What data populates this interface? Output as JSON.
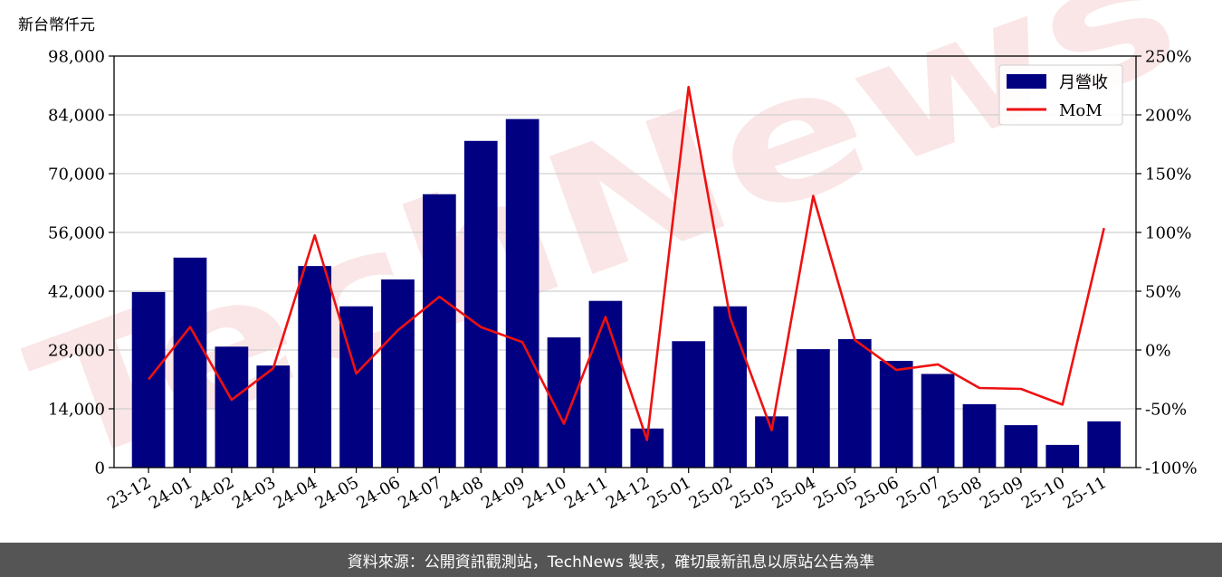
{
  "chart_data": {
    "type": "bar+line",
    "unit_label": "新台幣仟元",
    "categories": [
      "23-12",
      "24-01",
      "24-02",
      "24-03",
      "24-04",
      "24-05",
      "24-06",
      "24-07",
      "24-08",
      "24-09",
      "24-10",
      "24-11",
      "24-12",
      "25-01",
      "25-02",
      "25-03",
      "25-04",
      "25-05",
      "25-06",
      "25-07",
      "25-08",
      "25-09",
      "25-10",
      "25-11"
    ],
    "series": [
      {
        "name": "月營收",
        "axis": "left",
        "kind": "bar",
        "color": "#000080",
        "values": [
          41800,
          50000,
          28800,
          24300,
          48000,
          38400,
          44800,
          65100,
          77800,
          83000,
          31000,
          39700,
          9300,
          30100,
          38400,
          12200,
          28200,
          30600,
          25400,
          22300,
          15100,
          10100,
          5400,
          11000
        ]
      },
      {
        "name": "MoM",
        "axis": "right",
        "kind": "line",
        "color": "#ee1111",
        "values": [
          -25,
          19.6,
          -42.4,
          -15.6,
          97.5,
          -20,
          16.7,
          45.3,
          19.5,
          6.7,
          -62.7,
          28.1,
          -76.6,
          223.7,
          27.6,
          -68.2,
          131.1,
          8.5,
          -17,
          -12.2,
          -32.3,
          -33.1,
          -46.5,
          103.7
        ]
      }
    ],
    "left_axis": {
      "min": 0,
      "max": 98000,
      "ticks": [
        0,
        14000,
        28000,
        42000,
        56000,
        70000,
        84000,
        98000
      ],
      "tick_labels": [
        "0",
        "14,000",
        "28,000",
        "42,000",
        "56,000",
        "70,000",
        "84,000",
        "98,000"
      ]
    },
    "right_axis": {
      "min": -100,
      "max": 250,
      "ticks": [
        -100,
        -50,
        0,
        50,
        100,
        150,
        200,
        250
      ],
      "tick_labels": [
        "-100%",
        "-50%",
        "0%",
        "50%",
        "100%",
        "150%",
        "200%",
        "250%"
      ]
    },
    "grid": true,
    "legend_position": "top-right",
    "watermark": "TechNews"
  },
  "footer": {
    "text": "資料來源：公開資訊觀測站，TechNews 製表，確切最新訊息以原站公告為準"
  }
}
